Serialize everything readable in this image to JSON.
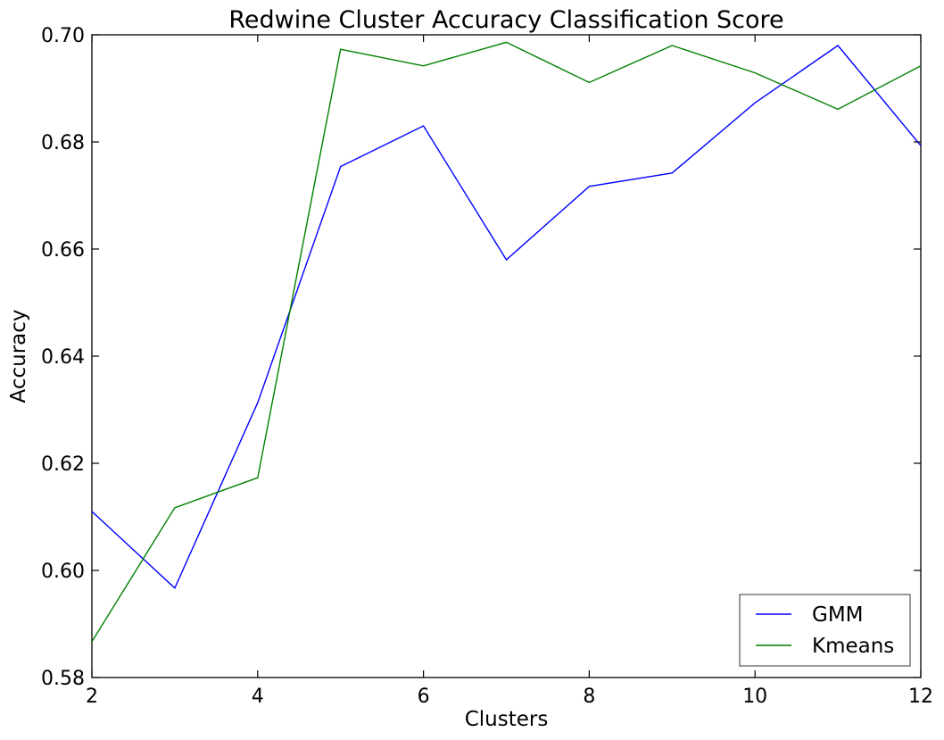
{
  "chart_data": {
    "type": "line",
    "title": "Redwine  Cluster Accuracy Classification Score",
    "xlabel": "Clusters",
    "ylabel": "Accuracy",
    "xlim": [
      2,
      12
    ],
    "ylim": [
      0.58,
      0.7
    ],
    "xticks": [
      "2",
      "4",
      "6",
      "8",
      "10",
      "12"
    ],
    "yticks": [
      "0.58",
      "0.60",
      "0.62",
      "0.64",
      "0.66",
      "0.68",
      "0.70"
    ],
    "x": [
      2,
      3,
      4,
      5,
      6,
      7,
      8,
      9,
      10,
      11,
      12
    ],
    "series": [
      {
        "name": "GMM",
        "color": "#0000ff",
        "values": [
          0.611,
          0.5967,
          0.6313,
          0.6754,
          0.683,
          0.658,
          0.6717,
          0.6742,
          0.6873,
          0.698,
          0.6793
        ]
      },
      {
        "name": "Kmeans",
        "color": "#008000",
        "values": [
          0.5867,
          0.6117,
          0.6173,
          0.6973,
          0.6942,
          0.6986,
          0.6911,
          0.698,
          0.6929,
          0.6861,
          0.6942
        ]
      }
    ],
    "grid": false,
    "legend_position": "lower-right"
  }
}
